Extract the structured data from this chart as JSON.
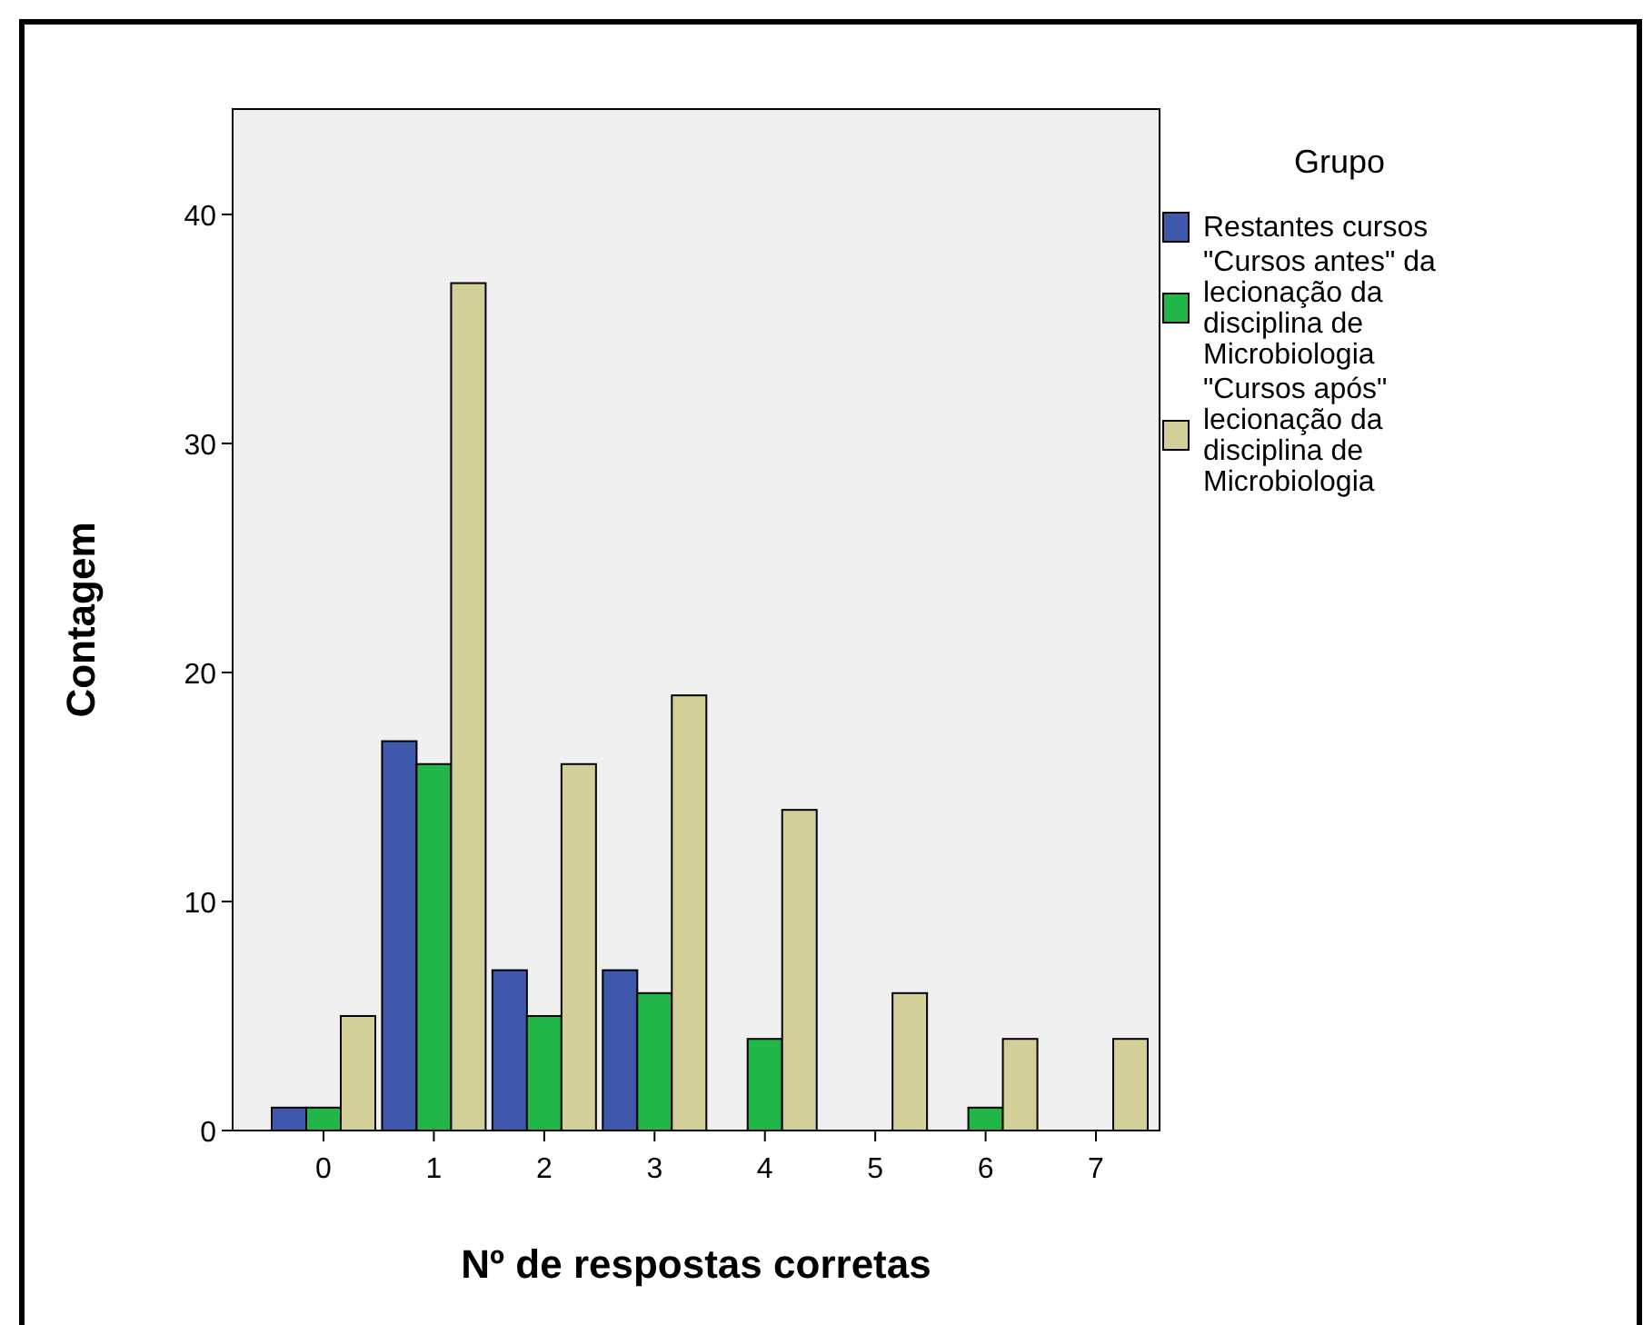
{
  "chart_data": {
    "type": "bar",
    "xlabel": "Nº de respostas corretas",
    "ylabel": "Contagem",
    "legend_title": "Grupo",
    "legend": "right",
    "categories": [
      "0",
      "1",
      "2",
      "3",
      "4",
      "5",
      "6",
      "7"
    ],
    "series": [
      {
        "name": "Restantes cursos",
        "color": "#3e58ac",
        "values": [
          1,
          17,
          7,
          7,
          null,
          null,
          null,
          null
        ]
      },
      {
        "name": "\"Cursos antes\" da lecionação da disciplina de Microbiologia",
        "color": "#22b648",
        "values": [
          1,
          16,
          5,
          6,
          4,
          null,
          1,
          null
        ]
      },
      {
        "name": "\"Cursos após\" lecionação da disciplina de Microbiologia",
        "color": "#d4cf98",
        "values": [
          5,
          37,
          16,
          19,
          14,
          6,
          4,
          4
        ]
      }
    ],
    "ylim": [
      0,
      44.6
    ],
    "yticks": [
      0,
      10,
      20,
      30,
      40
    ],
    "grid": false
  }
}
